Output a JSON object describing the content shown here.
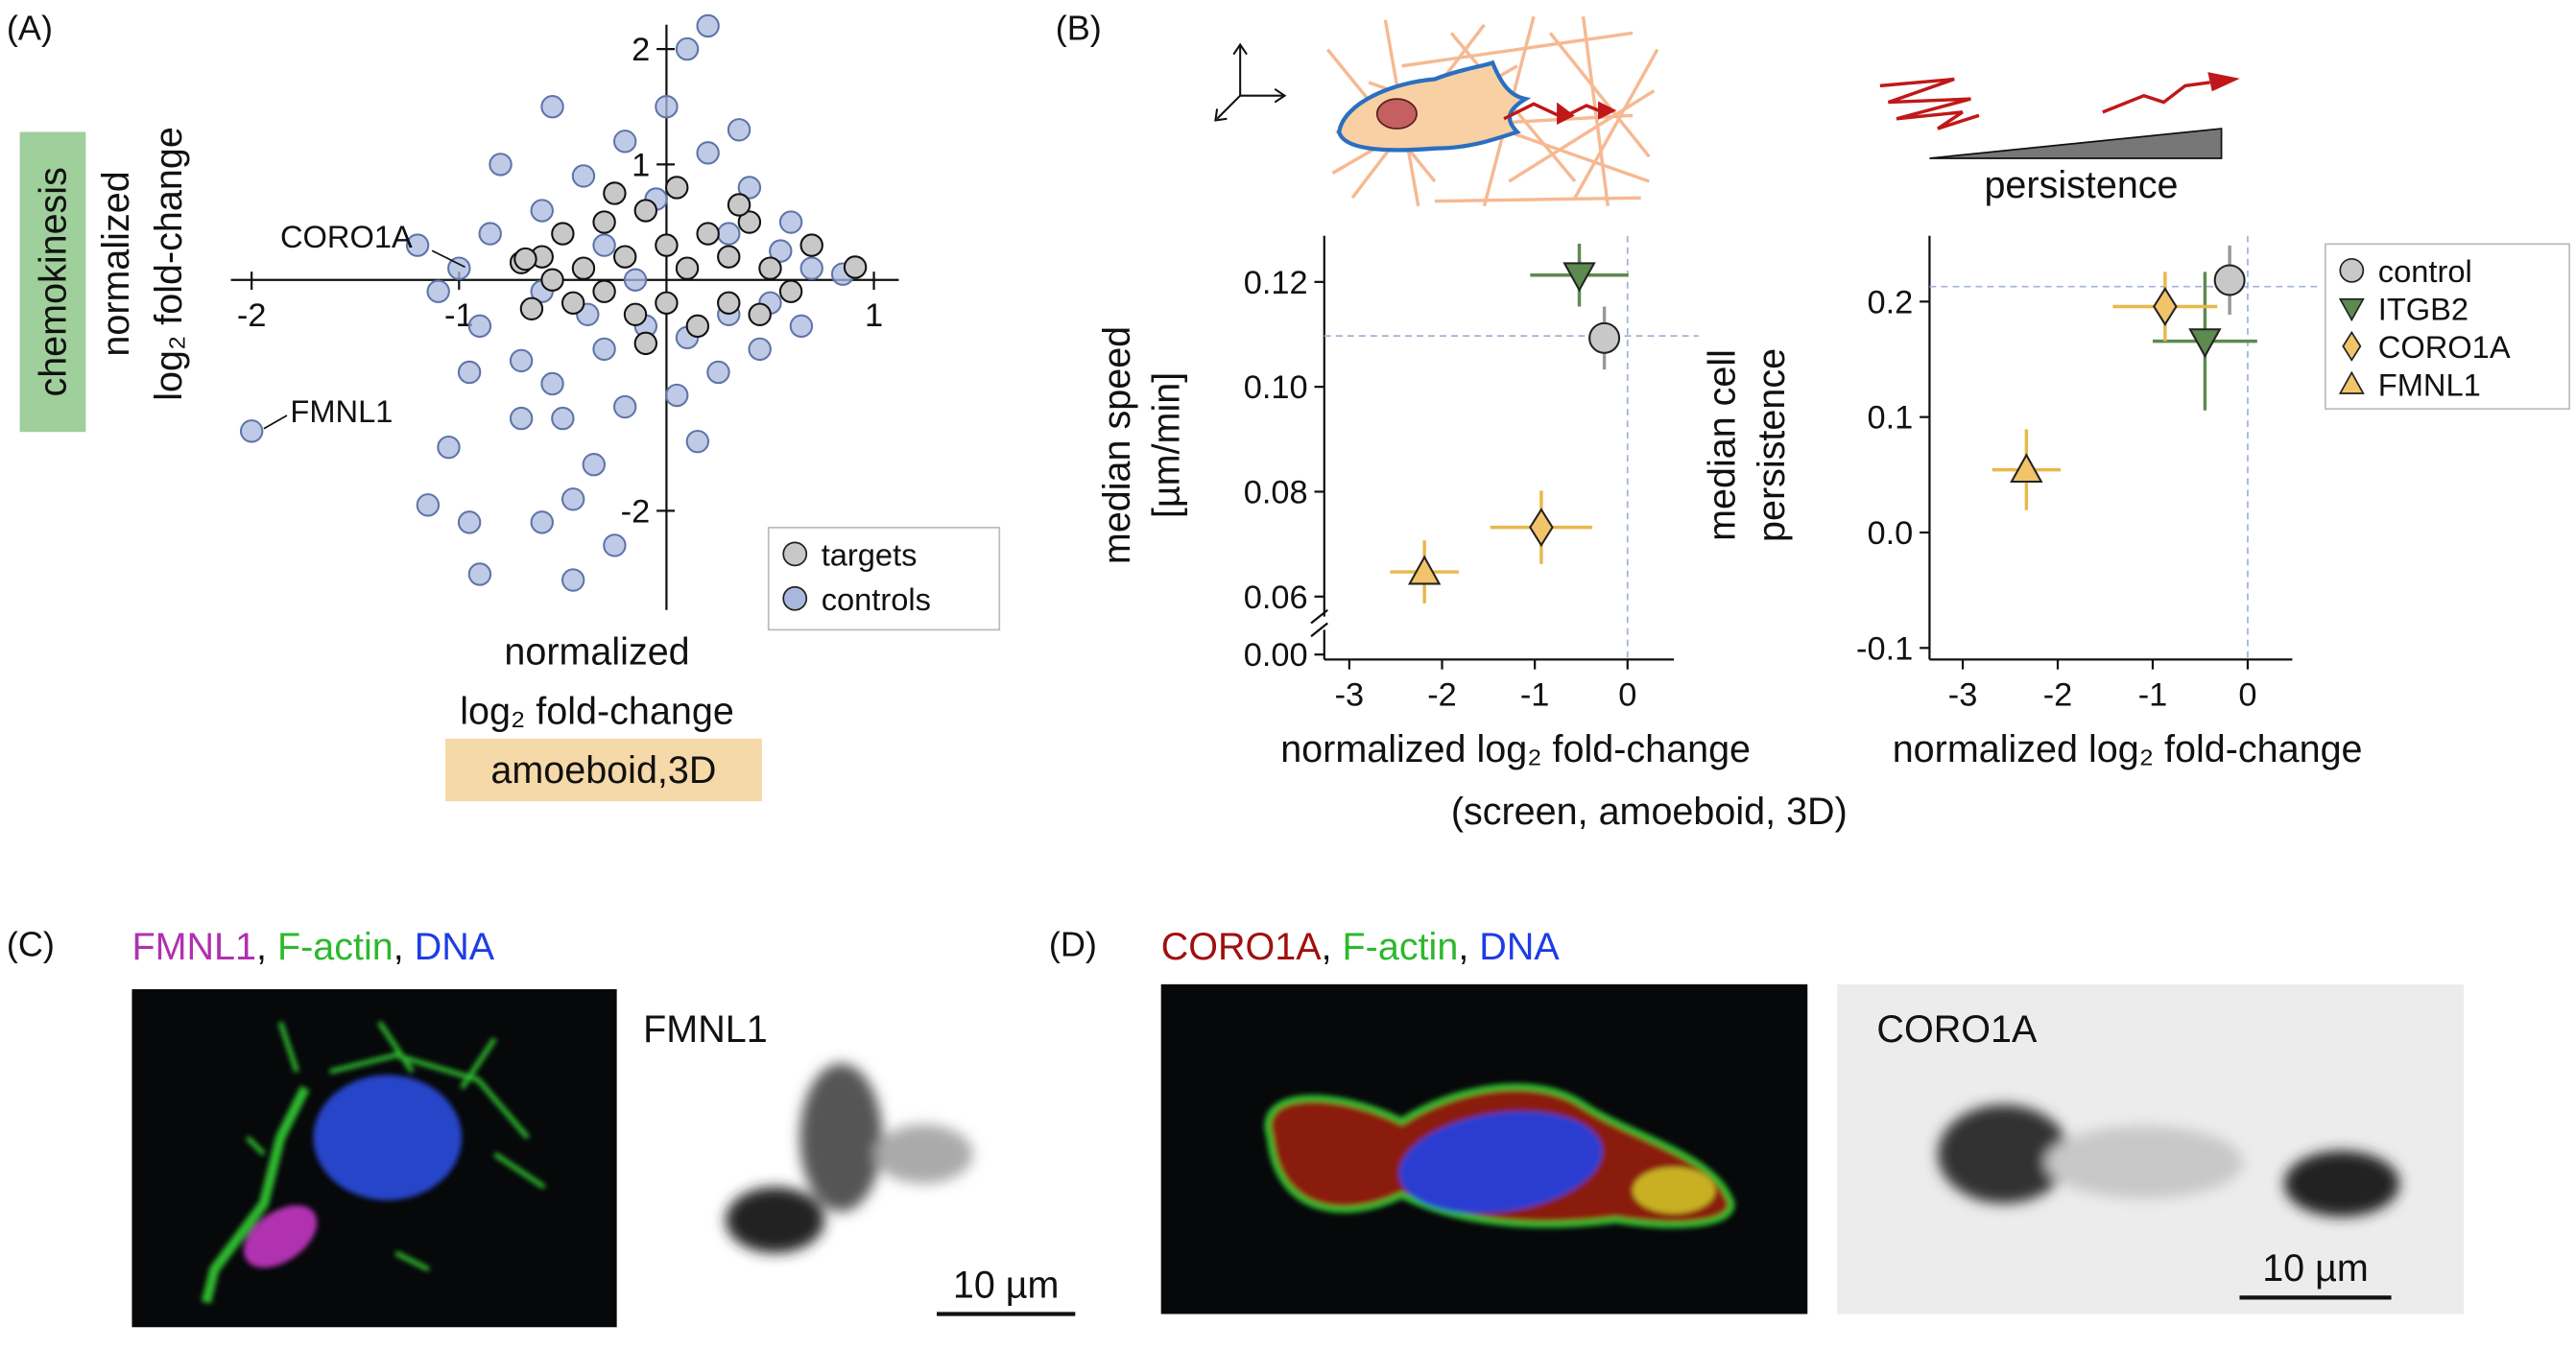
{
  "chart_data": [
    {
      "type": "scatter",
      "spines": "origin",
      "legend": "lower right",
      "xlabel": [
        "normalized",
        "log₂ fold-change"
      ],
      "ylabel": [
        "normalized",
        "log₂ fold-change"
      ],
      "xlim": [
        -2.1,
        1.12
      ],
      "ylim": [
        -2.86,
        2.21
      ],
      "xticks": [
        -2,
        -1,
        1
      ],
      "yticks": [
        -2,
        1,
        2
      ],
      "annotations": {
        "y_category": "chemokinesis",
        "x_category": "amoeboid,3D",
        "coro1a": "CORO1A",
        "fmnl1": "FMNL1"
      },
      "series": [
        {
          "name": "controls",
          "color": "#a9b9dd",
          "edge": "#5f74a8",
          "marker": "o",
          "x": [
            -2.0,
            -1.15,
            -0.95,
            -0.9,
            -0.45,
            -0.35,
            -0.7,
            -0.55,
            -0.3,
            -0.1,
            0.1,
            0.3,
            0.5,
            0.7,
            0.85,
            0.6,
            0.4,
            0.2,
            0.0,
            0.1,
            0.2,
            -0.2,
            -0.4,
            -0.6,
            -0.85,
            -1.0,
            -1.1,
            -0.9,
            -0.7,
            -0.5,
            -0.2,
            0.05,
            0.25,
            -0.8,
            -0.3,
            0.3,
            -0.05,
            0.45,
            -0.6,
            -1.2,
            -0.45,
            -0.25,
            0.65,
            -0.95,
            0.35,
            -0.55,
            0.15,
            -0.15,
            0.55,
            -0.38,
            -1.05,
            -0.6
          ],
          "values": [
            -1.31,
            -1.95,
            -2.1,
            -2.55,
            -2.6,
            -1.6,
            -1.2,
            -0.9,
            -0.6,
            -0.4,
            -0.5,
            -0.3,
            -0.2,
            0.1,
            0.05,
            0.5,
            0.8,
            1.1,
            1.5,
            2.0,
            2.2,
            1.2,
            0.9,
            0.6,
            0.4,
            0.1,
            -0.1,
            -0.4,
            -0.7,
            -1.2,
            -1.1,
            -1.0,
            -0.8,
            1.0,
            0.3,
            0.4,
            0.7,
            -0.6,
            -0.1,
            0.3,
            -1.9,
            -2.3,
            -0.4,
            -0.8,
            1.3,
            1.5,
            -1.4,
            0.0,
            0.25,
            -0.3,
            -1.45,
            -2.1
          ]
        },
        {
          "name": "targets",
          "color": "#c8c8c8",
          "edge": "#111111",
          "marker": "o",
          "x": [
            -0.6,
            -0.5,
            -0.4,
            -0.3,
            -0.2,
            -0.1,
            0,
            0.1,
            0.2,
            0.3,
            0.4,
            0.5,
            0.6,
            0.45,
            0.3,
            0.15,
            0,
            -0.15,
            -0.3,
            -0.45,
            -0.55,
            -0.65,
            -0.7,
            -0.25,
            0.05,
            -0.1,
            0.35,
            0.7,
            0.91,
            -0.68
          ],
          "values": [
            0.2,
            0.4,
            0.1,
            0.5,
            0.2,
            0.6,
            0.3,
            0.1,
            0.4,
            0.2,
            0.5,
            0.1,
            -0.1,
            -0.3,
            -0.2,
            -0.4,
            -0.2,
            -0.3,
            -0.1,
            -0.2,
            0.0,
            -0.25,
            0.15,
            0.75,
            0.8,
            -0.55,
            0.65,
            0.3,
            0.11,
            0.18
          ]
        }
      ]
    },
    {
      "type": "scatter",
      "spines": "left-bottom",
      "ybreak": true,
      "xlabel": [
        "normalized log₂ fold-change"
      ],
      "ylabel": [
        "median speed",
        "[µm/min]"
      ],
      "xlim": [
        -3.27,
        0.5
      ],
      "ylim": [
        0.048,
        0.1288
      ],
      "xticks": [
        -3,
        -2,
        -1,
        0
      ],
      "yticks": [
        {
          "value": 0,
          "label": "0.00"
        },
        0.06,
        0.08,
        {
          "value": 0.1,
          "label": "0.10"
        },
        0.12
      ],
      "hline": 0.1097,
      "vline": 0,
      "series": [
        {
          "color": "#c8c8c8",
          "edge": "#999999",
          "marker": "o",
          "x": [
            -0.25
          ],
          "values": [
            0.1093
          ],
          "xerr": [
            0.17
          ],
          "yerr": [
            0.006
          ]
        },
        {
          "color": "#5d8a4f",
          "edge": "#5d8a4f",
          "marker": "v",
          "x": [
            -0.52
          ],
          "values": [
            0.1213
          ],
          "xerr": [
            0.53
          ],
          "yerr": [
            0.006
          ]
        },
        {
          "color": "#f2c46a",
          "edge": "#e8b84a",
          "marker": "d",
          "x": [
            -0.93
          ],
          "values": [
            0.0732
          ],
          "xerr": [
            0.55
          ],
          "yerr": [
            0.007
          ]
        },
        {
          "color": "#f2c46a",
          "edge": "#e8b84a",
          "marker": "^",
          "x": [
            -2.19
          ],
          "values": [
            0.0647
          ],
          "xerr": [
            0.37
          ],
          "yerr": [
            0.006
          ]
        }
      ]
    },
    {
      "type": "scatter",
      "spines": "left-bottom",
      "legend": "right",
      "xlabel": [
        "normalized log₂ fold-change"
      ],
      "ylabel": [
        "median cell",
        "persistence"
      ],
      "xlim": [
        -3.35,
        0.47
      ],
      "ylim": [
        -0.11,
        0.257
      ],
      "xticks": [
        -3,
        -2,
        -1,
        0
      ],
      "yticks": [
        -0.1,
        {
          "value": 0,
          "label": "0.0"
        },
        0.1,
        0.2
      ],
      "hline": 0.213,
      "vline": 0,
      "series": [
        {
          "name": "control",
          "color": "#c8c8c8",
          "edge": "#999999",
          "marker": "o",
          "x": [
            -0.19
          ],
          "values": [
            0.2186
          ],
          "xerr": [
            0.1
          ],
          "yerr": [
            0.03
          ]
        },
        {
          "name": "ITGB2",
          "color": "#5d8a4f",
          "edge": "#5d8a4f",
          "marker": "v",
          "x": [
            -0.45
          ],
          "values": [
            0.1657
          ],
          "xerr": [
            0.55
          ],
          "yerr": [
            0.06
          ]
        },
        {
          "name": "CORO1A",
          "color": "#f2c46a",
          "edge": "#e8b84a",
          "marker": "d",
          "x": [
            -0.87
          ],
          "values": [
            0.1957
          ],
          "xerr": [
            0.55
          ],
          "yerr": [
            0.03
          ]
        },
        {
          "name": "FMNL1",
          "color": "#f2c46a",
          "edge": "#e8b84a",
          "marker": "^",
          "x": [
            -2.33
          ],
          "values": [
            0.0543
          ],
          "xerr": [
            0.36
          ],
          "yerr": [
            0.035
          ]
        }
      ]
    }
  ],
  "labels": {
    "a": "(A)",
    "b": "(B)",
    "c": "(C)",
    "d": "(D)"
  },
  "illustration": {
    "persistence": "persistence"
  },
  "caption_b": "(screen, amoeboid, 3D)",
  "panel_c": {
    "channels": [
      {
        "name": "FMNL1",
        "color": "#b030b0"
      },
      {
        "name": "F-actin",
        "color": "#2db82d"
      },
      {
        "name": "DNA",
        "color": "#1e3ce6"
      }
    ],
    "separator": ",",
    "gray_label": "FMNL1",
    "scale_bar": "10 µm"
  },
  "panel_d": {
    "channels": [
      {
        "name": "CORO1A",
        "color": "#a01010"
      },
      {
        "name": "F-actin",
        "color": "#2db82d"
      },
      {
        "name": "DNA",
        "color": "#1e3ce6"
      }
    ],
    "separator": ",",
    "gray_label": "CORO1A",
    "scale_bar": "10 µm"
  }
}
